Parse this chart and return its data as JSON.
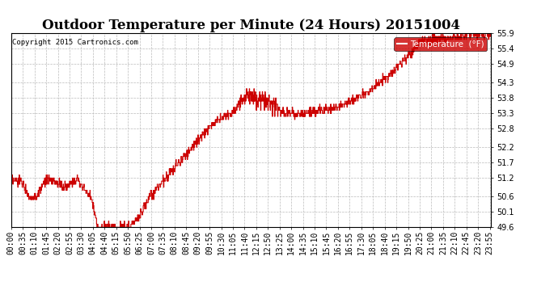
{
  "title": "Outdoor Temperature per Minute (24 Hours) 20151004",
  "copyright_text": "Copyright 2015 Cartronics.com",
  "legend_label": "Temperature  (°F)",
  "line_color": "#cc0000",
  "legend_bg": "#cc0000",
  "legend_text_color": "#ffffff",
  "background_color": "#ffffff",
  "grid_color": "#bbbbbb",
  "ylim": [
    49.6,
    55.9
  ],
  "yticks": [
    49.6,
    50.1,
    50.6,
    51.2,
    51.7,
    52.2,
    52.8,
    53.3,
    53.8,
    54.3,
    54.9,
    55.4,
    55.9
  ],
  "x_tick_interval": 35,
  "title_fontsize": 12,
  "axis_fontsize": 7,
  "num_points": 1440
}
